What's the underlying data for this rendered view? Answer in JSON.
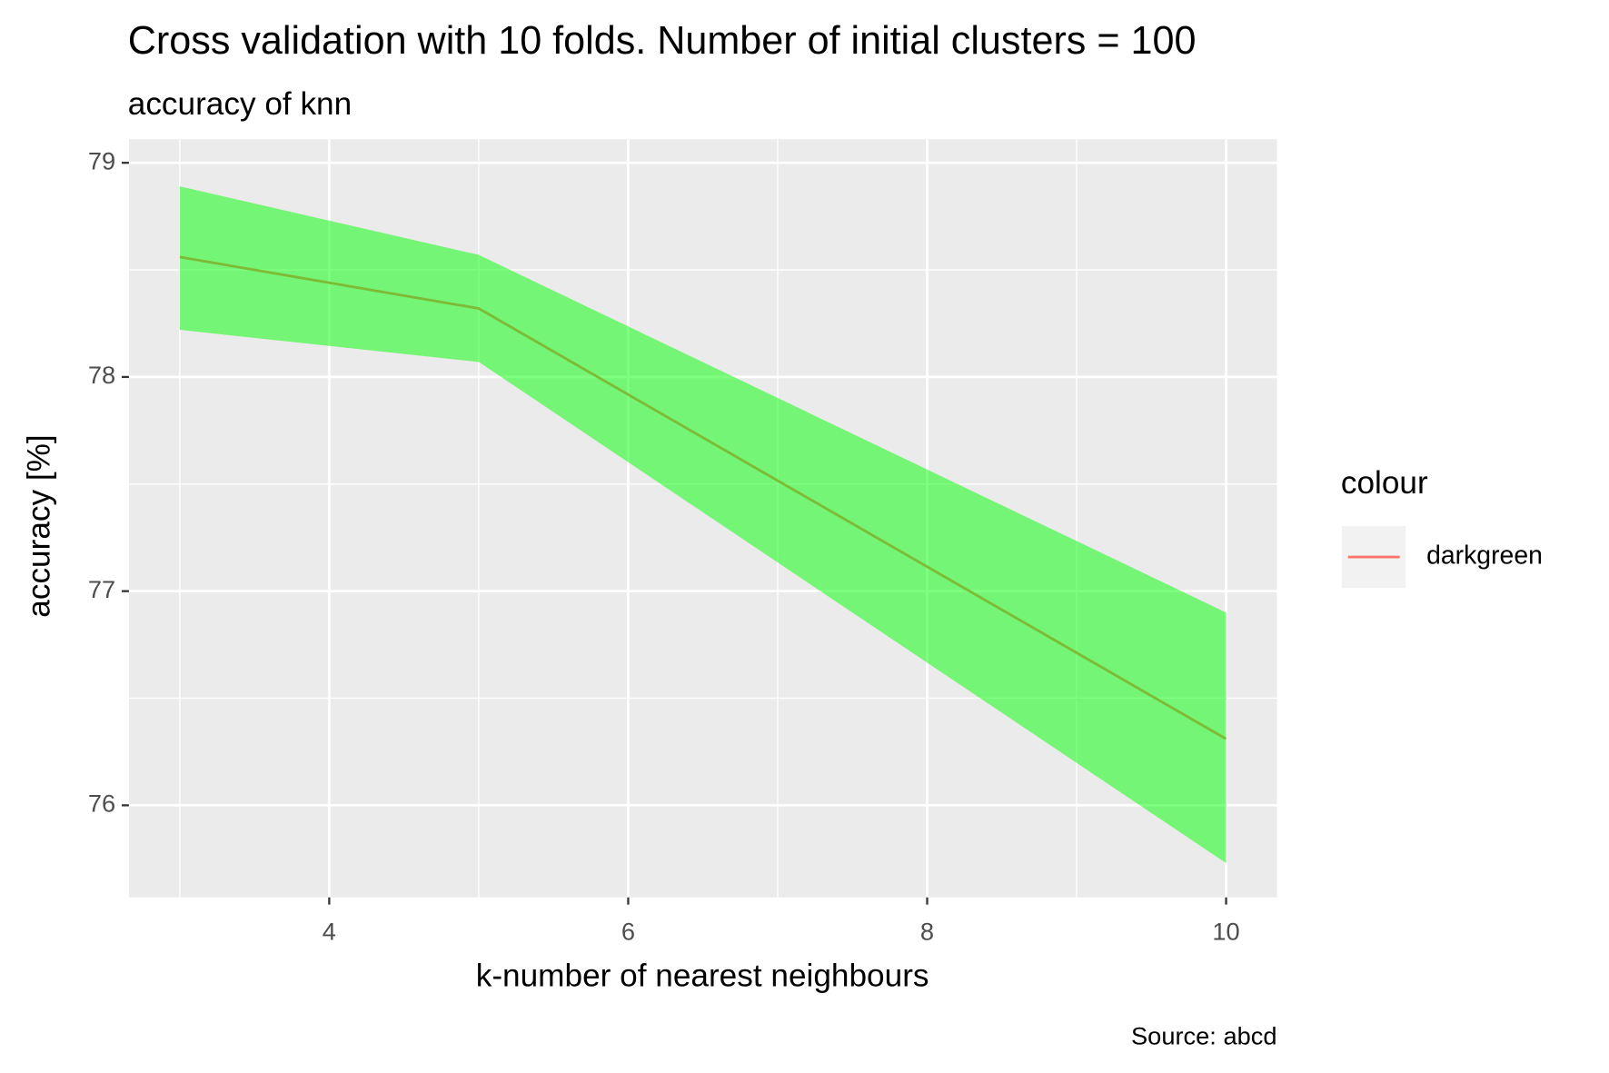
{
  "chart_data": {
    "type": "line",
    "title": "Cross validation with 10 folds. Number of initial clusters =  100",
    "subtitle": "accuracy of knn",
    "x_label": "k-number of nearest neighbours",
    "y_label": "accuracy [%]",
    "caption": "Source: abcd",
    "legend_title": "colour",
    "legend": "right",
    "x": [
      3,
      5,
      10
    ],
    "series": [
      {
        "name": "darkgreen",
        "color": "#F8766D",
        "values": [
          78.56,
          78.32,
          76.31
        ]
      }
    ],
    "ribbon": {
      "lower": [
        78.22,
        78.07,
        75.73
      ],
      "upper": [
        78.89,
        78.57,
        76.9
      ],
      "color": "#00FF00",
      "opacity": 0.5
    },
    "xlim": [
      2.66,
      10.34
    ],
    "ylim": [
      75.57,
      79.11
    ],
    "xticks": [
      4,
      6,
      8,
      10
    ],
    "yticks": [
      76,
      77,
      78,
      79
    ],
    "x_minor_grid": [
      3,
      5,
      7,
      9
    ],
    "y_minor_grid": [
      76.5,
      77.5,
      78.5
    ],
    "grid": true
  }
}
